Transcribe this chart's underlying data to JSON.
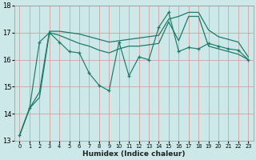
{
  "xlabel": "Humidex (Indice chaleur)",
  "xlim": [
    -0.5,
    23.5
  ],
  "ylim": [
    13,
    18
  ],
  "yticks": [
    13,
    14,
    15,
    16,
    17,
    18
  ],
  "xticks": [
    0,
    1,
    2,
    3,
    4,
    5,
    6,
    7,
    8,
    9,
    10,
    11,
    12,
    13,
    14,
    15,
    16,
    17,
    18,
    19,
    20,
    21,
    22,
    23
  ],
  "bg_color": "#cce8e8",
  "grid_color": "#d4a0a0",
  "line_color": "#1e7a6a",
  "line_jagged": [
    13.2,
    14.2,
    16.65,
    17.0,
    16.65,
    16.3,
    16.25,
    15.5,
    15.05,
    14.85,
    16.65,
    15.4,
    16.1,
    16.0,
    17.2,
    17.75,
    16.3,
    16.45,
    16.4,
    16.6,
    16.5,
    16.4,
    16.35,
    16.0
  ],
  "line_upper": [
    13.2,
    14.2,
    14.8,
    17.05,
    17.05,
    17.0,
    16.95,
    16.85,
    16.75,
    16.65,
    16.7,
    16.75,
    16.8,
    16.85,
    16.9,
    17.5,
    17.6,
    17.75,
    17.75,
    17.1,
    16.85,
    16.75,
    16.65,
    16.1
  ],
  "line_lower": [
    13.2,
    14.2,
    14.6,
    17.0,
    16.9,
    16.75,
    16.6,
    16.5,
    16.35,
    16.25,
    16.4,
    16.5,
    16.5,
    16.55,
    16.6,
    17.4,
    16.7,
    17.6,
    17.6,
    16.5,
    16.4,
    16.3,
    16.2,
    16.0
  ]
}
